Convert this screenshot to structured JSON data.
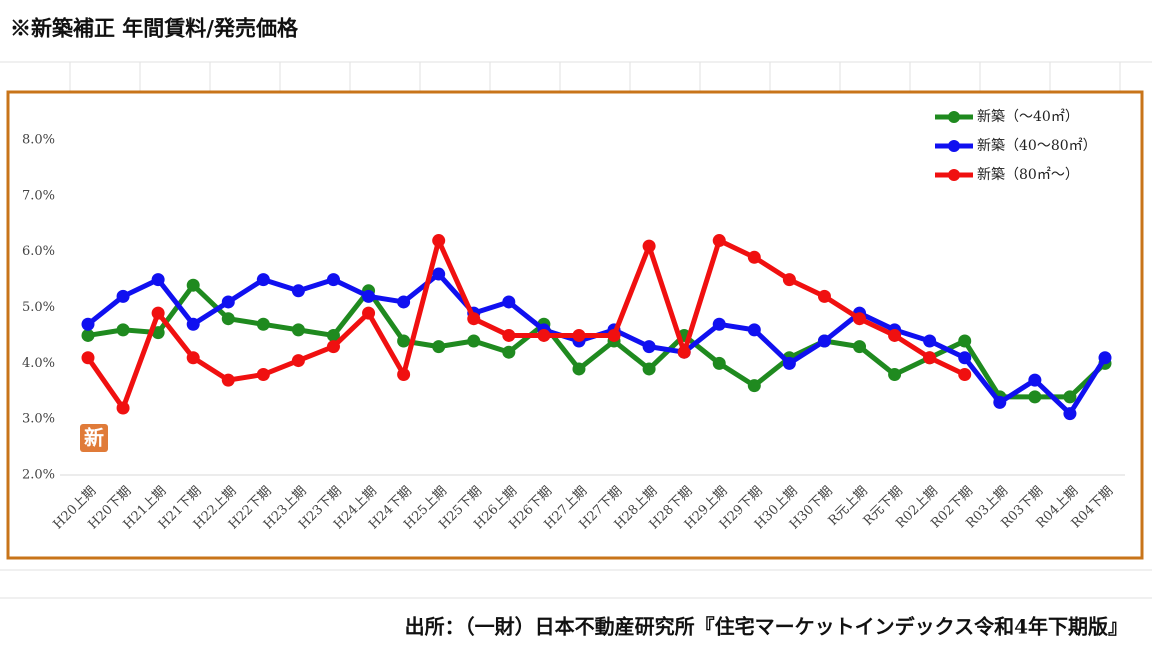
{
  "title": "※新築補正 年間賃料/発売価格",
  "source": "出所：（一財）日本不動産研究所『住宅マーケットインデックス令和4年下期版』",
  "chart_data": {
    "type": "line",
    "badge": "新",
    "categories": [
      "H20上期",
      "H20下期",
      "H21上期",
      "H21下期",
      "H22上期",
      "H22下期",
      "H23上期",
      "H23下期",
      "H24上期",
      "H24下期",
      "H25上期",
      "H25下期",
      "H26上期",
      "H26下期",
      "H27上期",
      "H27下期",
      "H28上期",
      "H28下期",
      "H29上期",
      "H29下期",
      "H30上期",
      "H30下期",
      "R元上期",
      "R元下期",
      "R02上期",
      "R02下期",
      "R03上期",
      "R03下期",
      "R04上期",
      "R04下期"
    ],
    "series": [
      {
        "name": "新築（～40㎡）",
        "color": "#1f8a1f",
        "values": [
          4.5,
          4.6,
          4.55,
          5.4,
          4.8,
          4.7,
          4.6,
          4.5,
          5.3,
          4.4,
          4.3,
          4.4,
          4.2,
          4.7,
          3.9,
          4.4,
          3.9,
          4.5,
          4.0,
          3.6,
          4.1,
          4.4,
          4.3,
          3.8,
          4.1,
          4.4,
          3.4,
          3.4,
          3.4,
          4.0
        ]
      },
      {
        "name": "新築（40～80㎡）",
        "color": "#1010f0",
        "values": [
          4.7,
          5.2,
          5.5,
          4.7,
          5.1,
          5.5,
          5.3,
          5.5,
          5.2,
          5.1,
          5.6,
          4.9,
          5.1,
          4.6,
          4.4,
          4.6,
          4.3,
          4.2,
          4.7,
          4.6,
          4.0,
          4.4,
          4.9,
          4.6,
          4.4,
          4.1,
          3.3,
          3.7,
          3.1,
          4.1
        ]
      },
      {
        "name": "新築（80㎡～）",
        "color": "#f01010",
        "values": [
          4.1,
          3.2,
          4.9,
          4.1,
          3.7,
          3.8,
          4.05,
          4.3,
          4.9,
          3.8,
          6.2,
          4.8,
          4.5,
          4.5,
          4.5,
          4.5,
          6.1,
          4.2,
          6.2,
          5.9,
          5.5,
          5.2,
          4.8,
          4.5,
          4.1,
          3.8,
          null,
          null,
          null,
          null
        ]
      }
    ],
    "ylim": [
      2,
      8.7
    ],
    "yticks": [
      {
        "value": 2,
        "label": "2.0%"
      },
      {
        "value": 3,
        "label": "3.0%"
      },
      {
        "value": 4,
        "label": "4.0%"
      },
      {
        "value": 5,
        "label": "5.0%"
      },
      {
        "value": 6,
        "label": "6.0%"
      },
      {
        "value": 7,
        "label": "7.0%"
      },
      {
        "value": 8,
        "label": "8.0%"
      }
    ],
    "grid": false,
    "legend": "top-right"
  }
}
